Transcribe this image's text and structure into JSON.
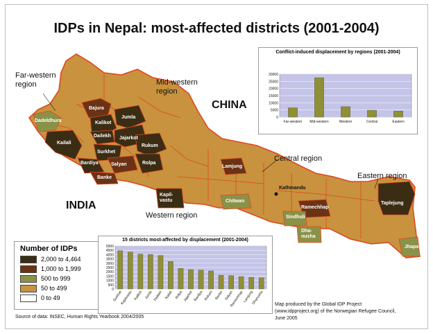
{
  "title": "IDPs in Nepal: most-affected districts (2001-2004)",
  "region_labels": {
    "far_western": "Far-western region",
    "mid_western": "Mid-western region",
    "central": "Central region",
    "eastern": "Eastern region",
    "western": "Western region"
  },
  "country_labels": {
    "china": "CHINA",
    "india": "INDIA"
  },
  "capital_label": "Kathmandu",
  "districts": {
    "bajura": "Bajura",
    "dadeldhura": "Dadeldhura",
    "kalikot": "Kalikot",
    "jumla": "Jumla",
    "dailekh": "Dailekh",
    "jajarkot": "Jajarkot",
    "kailali": "Kailali",
    "surkhet": "Surkhet",
    "rukum": "Rukum",
    "bardiya": "Bardiya",
    "salyan": "Salyan",
    "rolpa": "Rolpa",
    "banke": "Banke",
    "lamjung": "Lamjung",
    "kapilvastu": "Kapil-vastu",
    "chitwan": "Chitwan",
    "ramechhap": "Ramechhap",
    "sindhuli": "Sindhuli",
    "dhanusha": "Dha-nusha",
    "taplejung": "Taplejung",
    "jhapa": "Jhapa"
  },
  "legend": {
    "title": "Number of IDPs",
    "items": [
      {
        "label": "2,000 to 4,464",
        "color": "#3b2d14"
      },
      {
        "label": "1,000 to 1,999",
        "color": "#6a3316"
      },
      {
        "label": "500 to 999",
        "color": "#8a9248"
      },
      {
        "label": "50 to 499",
        "color": "#c8923e"
      },
      {
        "label": "0 to 49",
        "color": "#ffffff"
      }
    ]
  },
  "colors": {
    "map_fill": "#c8923e",
    "border": "#e0471f",
    "bar": "#8f8f35",
    "plot_bg": "#c4c4e8"
  },
  "chart_data": [
    {
      "type": "bar",
      "title": "Conflict-induced displacement by regions (2001-2004)",
      "categories": [
        "Far-western",
        "Mid-western",
        "Western",
        "Central",
        "Eastern"
      ],
      "values": [
        6500,
        27500,
        7300,
        4800,
        4200
      ],
      "ylim": [
        0,
        30000
      ],
      "yticks": [
        "0",
        "5000",
        "10000",
        "15000",
        "20000",
        "25000",
        "30000"
      ],
      "grid": true
    },
    {
      "type": "bar",
      "title": "15 districts most-affected by displacement (2001-2004)",
      "categories": [
        "Surkhet",
        "Kapilvastu",
        "Kalikot",
        "Jumla",
        "Dailekh",
        "Kailali",
        "Rolpa",
        "Jajarkot",
        "Bardiya",
        "Rukum",
        "Banke",
        "Salyan",
        "Ramechhap",
        "Lamjung",
        "Dhanusha"
      ],
      "values": [
        4464,
        4300,
        4050,
        4000,
        3900,
        3200,
        2400,
        2250,
        2200,
        2100,
        1600,
        1550,
        1450,
        1350,
        1300
      ],
      "ylim": [
        0,
        5000
      ],
      "yticks": [
        "0",
        "500",
        "1000",
        "1500",
        "2000",
        "2500",
        "3000",
        "3500",
        "4000",
        "4500",
        "5000"
      ],
      "grid": true
    }
  ],
  "source": "Source of data: INSEC, Human Rights Yearbook 2004/2005",
  "credit": {
    "line1": "Map produced by the Global IDP Project",
    "line2": "(www.idpproject.org) of the Norwegian Refugee Council,",
    "line3": "June 2005"
  }
}
